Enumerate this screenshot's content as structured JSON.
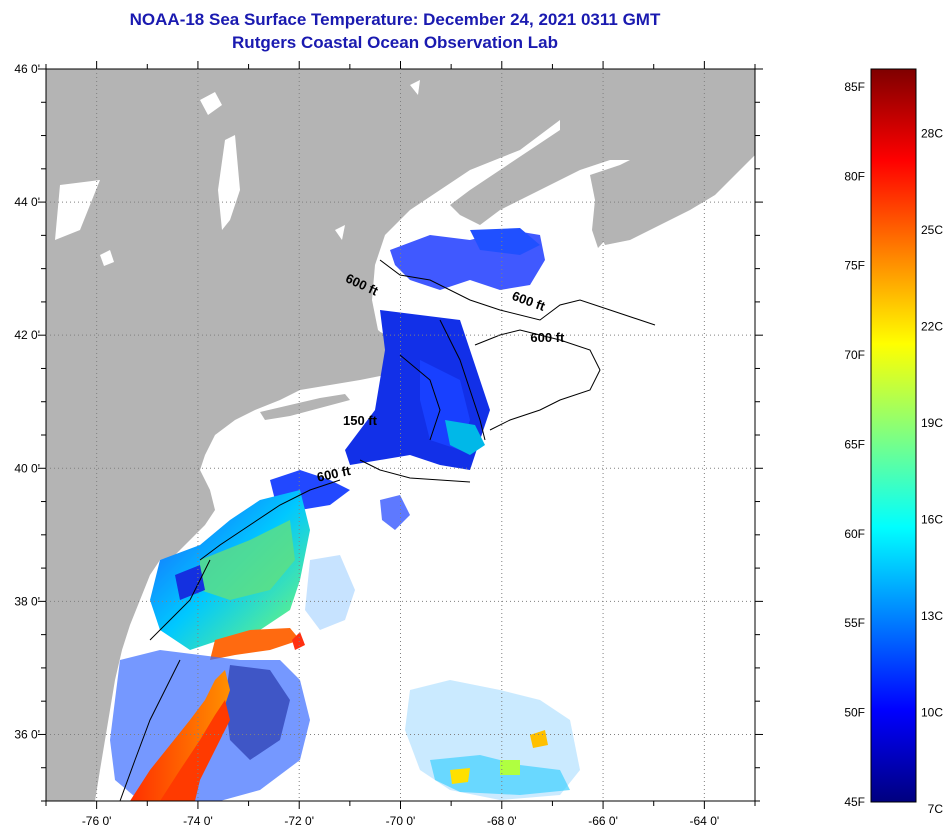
{
  "title": "NOAA-18 Sea Surface Temperature:  December 24, 2021 0311 GMT",
  "subtitle": "Rutgers Coastal Ocean Observation Lab",
  "map": {
    "lon_range": [
      -77.0,
      -63.0
    ],
    "lat_range": [
      35.0,
      46.0
    ],
    "lon_ticks": [
      "-76 0'",
      "-74 0'",
      "-72 0'",
      "-70 0'",
      "-68 0'",
      "-66 0'",
      "-64 0'"
    ],
    "lat_ticks": [
      "46 0'",
      "44 0'",
      "42 0'",
      "40 0'",
      "38 0'",
      "36 0'"
    ],
    "land_color": "#b4b4b4",
    "nodata_color": "#ffffff",
    "contour_labels": [
      {
        "text": "600 ft",
        "lon": -70.8,
        "lat": 42.7,
        "rotate": 25
      },
      {
        "text": "600 ft",
        "lon": -67.5,
        "lat": 42.45,
        "rotate": 20
      },
      {
        "text": "600 ft",
        "lon": -67.1,
        "lat": 41.9,
        "rotate": 0
      },
      {
        "text": "150 ft",
        "lon": -70.8,
        "lat": 40.65,
        "rotate": 0
      },
      {
        "text": "600 ft",
        "lon": -71.3,
        "lat": 39.85,
        "rotate": -12
      }
    ]
  },
  "colorbar": {
    "f_labels": [
      "85F",
      "80F",
      "75F",
      "70F",
      "65F",
      "60F",
      "55F",
      "50F",
      "45F"
    ],
    "c_labels": [
      "28C",
      "25C",
      "22C",
      "19C",
      "16C",
      "13C",
      "10C",
      "7C"
    ],
    "min_f": 45,
    "max_f": 86,
    "colors": [
      "#00007f",
      "#0000ff",
      "#0080ff",
      "#00ffff",
      "#80ff80",
      "#ffff00",
      "#ff8000",
      "#ff0000",
      "#7f0000"
    ]
  }
}
